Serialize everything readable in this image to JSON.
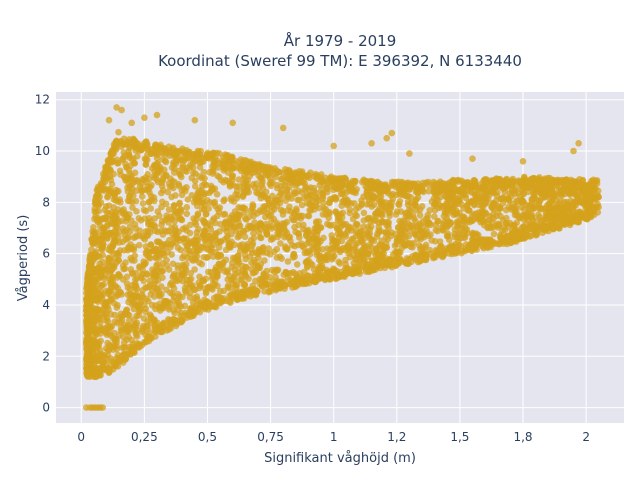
{
  "chart_data": {
    "type": "scatter",
    "title_line1": "År 1979 - 2019",
    "title_line2": "Koordinat (Sweref 99 TM): E 396392, N 6133440",
    "xlabel": "Signifikant våghöjd (m)",
    "ylabel": "Vågperiod (s)",
    "xlim": [
      -0.1,
      2.15
    ],
    "ylim": [
      -0.6,
      12.3
    ],
    "x_ticks": [
      0,
      0.25,
      0.5,
      0.75,
      1,
      1.25,
      1.5,
      1.75,
      2
    ],
    "x_tick_labels": [
      "0",
      "0,25",
      "0,5",
      "0,75",
      "1",
      "1,2",
      "1,5",
      "1,8",
      "2"
    ],
    "y_ticks": [
      0,
      2,
      4,
      6,
      8,
      10,
      12
    ],
    "y_tick_labels": [
      "0",
      "2",
      "4",
      "6",
      "8",
      "10",
      "12"
    ],
    "grid": true,
    "legend": "none",
    "marker_color": "#d4a21c",
    "plot_bg": "#e5e5ef",
    "envelope": {
      "hs": [
        0.0,
        0.03,
        0.06,
        0.1,
        0.15,
        0.2,
        0.25,
        0.3,
        0.4,
        0.5,
        0.6,
        0.7,
        0.8,
        0.9,
        1.0,
        1.1,
        1.2,
        1.3,
        1.4,
        1.5,
        1.6,
        1.7,
        1.8,
        1.9,
        2.0,
        2.05
      ],
      "tp_lower": [
        1.3,
        1.2,
        1.2,
        1.3,
        1.6,
        2.0,
        2.4,
        2.8,
        3.3,
        3.8,
        4.1,
        4.4,
        4.6,
        4.8,
        5.0,
        5.2,
        5.4,
        5.6,
        5.8,
        6.0,
        6.2,
        6.4,
        6.7,
        7.0,
        7.3,
        7.6
      ],
      "tp_upper": [
        3.0,
        5.5,
        8.5,
        9.5,
        10.8,
        10.5,
        10.4,
        10.3,
        10.1,
        10.0,
        9.8,
        9.5,
        9.3,
        9.2,
        9.0,
        8.9,
        8.8,
        8.8,
        8.8,
        8.9,
        8.9,
        9.0,
        9.0,
        8.9,
        8.9,
        8.9
      ]
    },
    "outliers": [
      {
        "x": 0.14,
        "y": 11.7
      },
      {
        "x": 0.16,
        "y": 11.6
      },
      {
        "x": 0.3,
        "y": 11.4
      },
      {
        "x": 0.25,
        "y": 11.3
      },
      {
        "x": 0.11,
        "y": 11.2
      },
      {
        "x": 0.2,
        "y": 11.1
      },
      {
        "x": 0.45,
        "y": 11.2
      },
      {
        "x": 0.6,
        "y": 11.1
      },
      {
        "x": 0.8,
        "y": 10.9
      },
      {
        "x": 1.23,
        "y": 10.7
      },
      {
        "x": 1.21,
        "y": 10.5
      },
      {
        "x": 1.0,
        "y": 10.2
      },
      {
        "x": 1.15,
        "y": 10.3
      },
      {
        "x": 1.3,
        "y": 9.9
      },
      {
        "x": 1.55,
        "y": 9.7
      },
      {
        "x": 1.75,
        "y": 9.6
      },
      {
        "x": 1.95,
        "y": 10.0
      },
      {
        "x": 1.97,
        "y": 10.3
      },
      {
        "x": 0.02,
        "y": 0
      },
      {
        "x": 0.035,
        "y": 0
      },
      {
        "x": 0.045,
        "y": 0
      },
      {
        "x": 0.055,
        "y": 0
      },
      {
        "x": 0.065,
        "y": 0
      },
      {
        "x": 0.075,
        "y": 0
      },
      {
        "x": 0.085,
        "y": 0
      }
    ]
  }
}
